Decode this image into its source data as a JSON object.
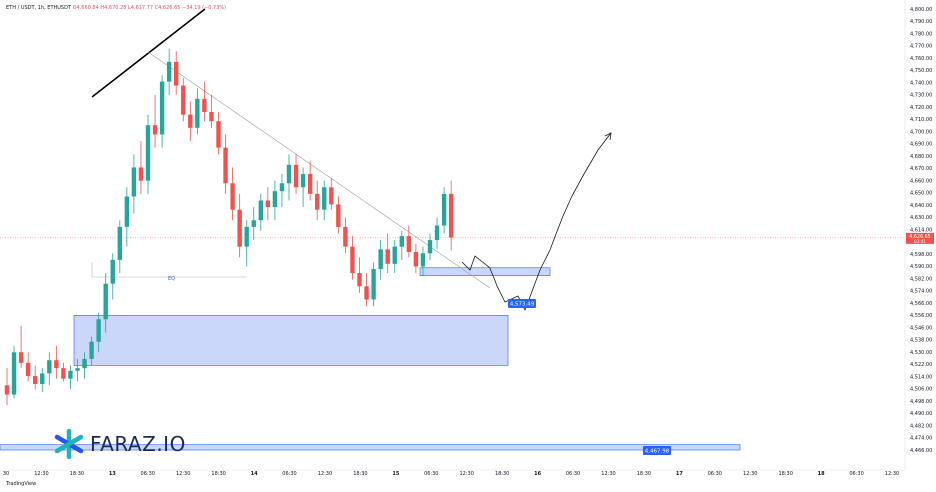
{
  "header": {
    "symbol": "ETH / USDT, 1h, ETHUSDT",
    "open": "O4,660.84",
    "high": "H4,670.28",
    "low": "L4,617.77",
    "close": "C4,626.65",
    "change": "−34.19 (−0.73%)"
  },
  "branding": {
    "logo_text": "FARAZ.IO",
    "footer": "TradingView"
  },
  "colors": {
    "up": "#26a69a",
    "down": "#ef5350",
    "zone": "#9fb6f6",
    "zone_border": "#2962ff",
    "tag": "#2962ff"
  },
  "chart_data": {
    "type": "candlestick",
    "y_axis": {
      "min": 4460,
      "max": 4800,
      "step": 8,
      "ticks": [
        "4,800.00",
        "4,790.00",
        "4,780.00",
        "4,770.00",
        "4,760.00",
        "4,750.00",
        "4,740.00",
        "4,730.00",
        "4,720.00",
        "4,710.00",
        "4,700.00",
        "4,690.00",
        "4,680.00",
        "4,670.00",
        "4,660.00",
        "4,650.00",
        "4,640.00",
        "4,630.00",
        "4,614.00",
        "4,606.00",
        "4,598.00",
        "4,590.00",
        "4,582.00",
        "4,574.00",
        "4,566.00",
        "4,556.00",
        "4,546.00",
        "4,538.00",
        "4,530.00",
        "4,522.00",
        "4,514.00",
        "4,506.00",
        "4,498.00",
        "4,490.00",
        "4,482.00",
        "4,474.00",
        "4,466.00"
      ]
    },
    "x_axis": {
      "labels": [
        "30",
        "12:30",
        "18:30",
        "13",
        "06:30",
        "12:30",
        "18:30",
        "14",
        "06:30",
        "12:30",
        "18:30",
        "15",
        "06:30",
        "12:30",
        "18:30",
        "16",
        "06:30",
        "12:30",
        "18:30",
        "17",
        "06:30",
        "12:30",
        "18:30",
        "18",
        "06:30",
        "12:30"
      ],
      "bold": [
        "13",
        "14",
        "15",
        "16",
        "17",
        "18"
      ]
    },
    "candles": [
      [
        4515,
        4528,
        4500,
        4508
      ],
      [
        4508,
        4545,
        4505,
        4540
      ],
      [
        4540,
        4560,
        4528,
        4532
      ],
      [
        4532,
        4540,
        4518,
        4522
      ],
      [
        4522,
        4530,
        4512,
        4516
      ],
      [
        4516,
        4528,
        4510,
        4524
      ],
      [
        4524,
        4540,
        4515,
        4534
      ],
      [
        4534,
        4545,
        4520,
        4528
      ],
      [
        4528,
        4532,
        4518,
        4520
      ],
      [
        4520,
        4530,
        4512,
        4526
      ],
      [
        4526,
        4535,
        4518,
        4528
      ],
      [
        4528,
        4540,
        4520,
        4535
      ],
      [
        4535,
        4552,
        4530,
        4548
      ],
      [
        4548,
        4570,
        4540,
        4565
      ],
      [
        4565,
        4600,
        4555,
        4592
      ],
      [
        4592,
        4615,
        4580,
        4610
      ],
      [
        4610,
        4640,
        4600,
        4635
      ],
      [
        4635,
        4665,
        4620,
        4658
      ],
      [
        4658,
        4690,
        4645,
        4680
      ],
      [
        4680,
        4700,
        4660,
        4670
      ],
      [
        4670,
        4720,
        4660,
        4712
      ],
      [
        4712,
        4735,
        4695,
        4705
      ],
      [
        4705,
        4750,
        4695,
        4745
      ],
      [
        4745,
        4770,
        4735,
        4760
      ],
      [
        4760,
        4768,
        4735,
        4742
      ],
      [
        4742,
        4748,
        4715,
        4720
      ],
      [
        4720,
        4730,
        4700,
        4710
      ],
      [
        4710,
        4740,
        4705,
        4732
      ],
      [
        4732,
        4745,
        4715,
        4722
      ],
      [
        4722,
        4735,
        4710,
        4715
      ],
      [
        4715,
        4722,
        4690,
        4695
      ],
      [
        4695,
        4705,
        4660,
        4668
      ],
      [
        4668,
        4680,
        4640,
        4648
      ],
      [
        4648,
        4660,
        4612,
        4620
      ],
      [
        4620,
        4640,
        4605,
        4635
      ],
      [
        4635,
        4650,
        4625,
        4640
      ],
      [
        4640,
        4660,
        4632,
        4655
      ],
      [
        4655,
        4665,
        4640,
        4650
      ],
      [
        4650,
        4670,
        4640,
        4662
      ],
      [
        4662,
        4675,
        4650,
        4668
      ],
      [
        4668,
        4690,
        4655,
        4682
      ],
      [
        4682,
        4690,
        4660,
        4665
      ],
      [
        4665,
        4680,
        4650,
        4675
      ],
      [
        4675,
        4685,
        4655,
        4660
      ],
      [
        4660,
        4670,
        4640,
        4648
      ],
      [
        4648,
        4670,
        4640,
        4665
      ],
      [
        4665,
        4672,
        4648,
        4652
      ],
      [
        4652,
        4658,
        4630,
        4635
      ],
      [
        4635,
        4642,
        4615,
        4620
      ],
      [
        4620,
        4628,
        4595,
        4600
      ],
      [
        4600,
        4612,
        4585,
        4590
      ],
      [
        4590,
        4600,
        4575,
        4580
      ],
      [
        4580,
        4608,
        4575,
        4603
      ],
      [
        4603,
        4625,
        4595,
        4618
      ],
      [
        4618,
        4630,
        4600,
        4607
      ],
      [
        4607,
        4625,
        4600,
        4620
      ],
      [
        4620,
        4632,
        4610,
        4628
      ],
      [
        4628,
        4636,
        4612,
        4616
      ],
      [
        4616,
        4622,
        4600,
        4605
      ],
      [
        4605,
        4620,
        4598,
        4615
      ],
      [
        4615,
        4630,
        4610,
        4625
      ],
      [
        4625,
        4642,
        4618,
        4636
      ],
      [
        4636,
        4665,
        4630,
        4660
      ],
      [
        4660,
        4670,
        4617,
        4627
      ]
    ],
    "markers": [
      {
        "type": "price_tag",
        "label": "4,573.49",
        "value": 4573.49
      },
      {
        "type": "price_tag",
        "label": "4,467.98",
        "value": 4467.98
      },
      {
        "type": "current_price",
        "label": "4,626.65",
        "sublabel": "03:41",
        "value": 4626.65
      }
    ],
    "annotations": [
      {
        "label": "EQ"
      }
    ],
    "zones": [
      {
        "name": "demand-zone",
        "low": 4530,
        "high": 4568
      },
      {
        "name": "retest-zone",
        "low": 4598,
        "high": 4604
      },
      {
        "name": "bottom-zone",
        "low": 4466,
        "high": 4470
      }
    ]
  }
}
